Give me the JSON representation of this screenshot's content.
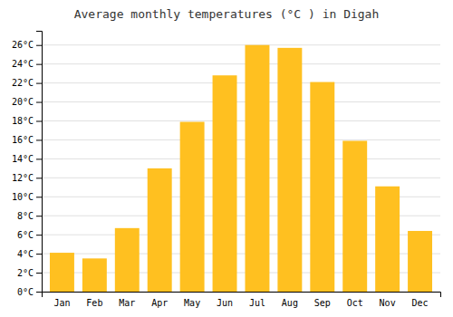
{
  "chart_data": {
    "type": "bar",
    "title": "Average monthly temperatures (°C ) in Digah",
    "categories": [
      "Jan",
      "Feb",
      "Mar",
      "Apr",
      "May",
      "Jun",
      "Jul",
      "Aug",
      "Sep",
      "Oct",
      "Nov",
      "Dec"
    ],
    "values": [
      4.1,
      3.5,
      6.7,
      13.0,
      17.9,
      22.8,
      26.0,
      25.7,
      22.1,
      15.9,
      11.1,
      6.4
    ],
    "color": "#FFC020",
    "ylim": [
      0,
      27.5
    ],
    "yticks": [
      {
        "value": 0,
        "label": "0°C"
      },
      {
        "value": 2,
        "label": "2°C"
      },
      {
        "value": 4,
        "label": "4°C"
      },
      {
        "value": 6,
        "label": "6°C"
      },
      {
        "value": 8,
        "label": "8°C"
      },
      {
        "value": 10,
        "label": "10°C"
      },
      {
        "value": 12,
        "label": "12°C"
      },
      {
        "value": 14,
        "label": "14°C"
      },
      {
        "value": 16,
        "label": "16°C"
      },
      {
        "value": 18,
        "label": "18°C"
      },
      {
        "value": 20,
        "label": "20°C"
      },
      {
        "value": 22,
        "label": "22°C"
      },
      {
        "value": 24,
        "label": "24°C"
      },
      {
        "value": 26,
        "label": "26°C"
      }
    ],
    "grid": true
  }
}
